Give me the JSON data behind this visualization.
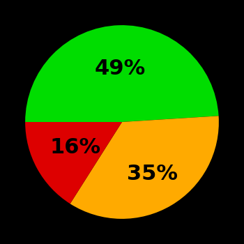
{
  "slices": [
    49,
    35,
    16
  ],
  "colors": [
    "#00dd00",
    "#ffaa00",
    "#dd0000"
  ],
  "labels": [
    "49%",
    "35%",
    "16%"
  ],
  "label_radii": [
    0.55,
    0.62,
    0.55
  ],
  "background_color": "#000000",
  "startangle": 180,
  "counterclock": false,
  "figsize": [
    3.5,
    3.5
  ],
  "dpi": 100
}
